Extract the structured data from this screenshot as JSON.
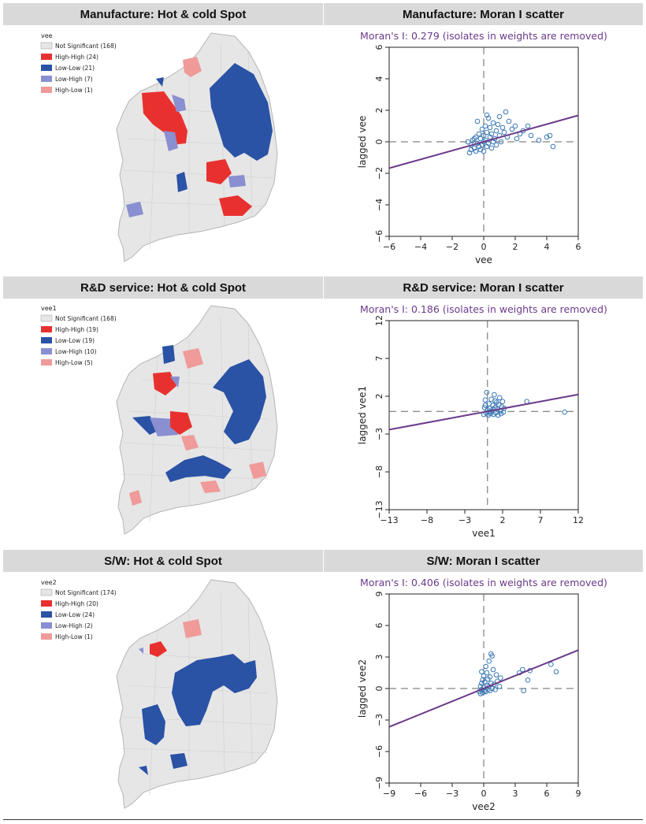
{
  "panels": [
    {
      "map_title": "Manufacture: Hot & cold Spot",
      "scatter_title": "Manufacture: Moran I scatter",
      "legend": {
        "variable": "vee",
        "items": [
          {
            "label": "Not Significant (168)",
            "color": "#e6e6e6"
          },
          {
            "label": "High-High (24)",
            "color": "#e8312f"
          },
          {
            "label": "Low-Low (21)",
            "color": "#2a52a5"
          },
          {
            "label": "Low-High (7)",
            "color": "#8a8fd1"
          },
          {
            "label": "High-Low (1)",
            "color": "#f09a9a"
          }
        ]
      },
      "moran_text": "Moran's I: 0.279 (isolates in weights are removed)"
    },
    {
      "map_title": "R&D service: Hot & cold Spot",
      "scatter_title": "R&D service: Moran I scatter",
      "legend": {
        "variable": "vee1",
        "items": [
          {
            "label": "Not Significant (168)",
            "color": "#e6e6e6"
          },
          {
            "label": "High-High (19)",
            "color": "#e8312f"
          },
          {
            "label": "Low-Low (19)",
            "color": "#2a52a5"
          },
          {
            "label": "Low-High (10)",
            "color": "#8a8fd1"
          },
          {
            "label": "High-Low (5)",
            "color": "#f09a9a"
          }
        ]
      },
      "moran_text": "Moran's I: 0.186 (isolates in weights are removed)"
    },
    {
      "map_title": "S/W: Hot & cold Spot",
      "scatter_title": "S/W: Moran I scatter",
      "legend": {
        "variable": "vee2",
        "items": [
          {
            "label": "Not Significant (174)",
            "color": "#e6e6e6"
          },
          {
            "label": "High-High (20)",
            "color": "#e8312f"
          },
          {
            "label": "Low-Low (24)",
            "color": "#2a52a5"
          },
          {
            "label": "Low-High (2)",
            "color": "#8a8fd1"
          },
          {
            "label": "High-Low (1)",
            "color": "#f09a9a"
          }
        ]
      },
      "moran_text": "Moran's I: 0.406 (isolates in weights are removed)"
    }
  ],
  "chart_data": [
    {
      "type": "scatter",
      "title": "Manufacture: Moran I scatter",
      "subtitle": "Moran's I: 0.279 (isolates in weights are removed)",
      "xlabel": "vee",
      "ylabel": "lagged vee",
      "xlim": [
        -6,
        6
      ],
      "ylim": [
        -6,
        6
      ],
      "xticks": [
        -6,
        -4,
        -2,
        0,
        2,
        4,
        6
      ],
      "yticks": [
        -6,
        -4,
        -2,
        0,
        2,
        4,
        6
      ],
      "slope": 0.279,
      "point_color": "#3a78b5",
      "line_color": "#6b3a8a",
      "points": [
        [
          -0.9,
          -0.7
        ],
        [
          -0.8,
          -0.5
        ],
        [
          -0.8,
          -0.2
        ],
        [
          -0.7,
          0.1
        ],
        [
          -0.6,
          -0.4
        ],
        [
          -0.5,
          -0.6
        ],
        [
          -0.5,
          0.3
        ],
        [
          -0.4,
          -0.1
        ],
        [
          -0.3,
          0.5
        ],
        [
          -0.3,
          -0.3
        ],
        [
          -0.2,
          -0.5
        ],
        [
          -0.2,
          0.2
        ],
        [
          -0.1,
          0.8
        ],
        [
          -0.1,
          -0.2
        ],
        [
          0.0,
          0.4
        ],
        [
          0.0,
          -0.6
        ],
        [
          0.1,
          0.1
        ],
        [
          0.1,
          1.0
        ],
        [
          0.2,
          -0.3
        ],
        [
          0.2,
          0.6
        ],
        [
          0.3,
          1.5
        ],
        [
          0.3,
          -0.1
        ],
        [
          0.4,
          0.3
        ],
        [
          0.4,
          0.9
        ],
        [
          0.5,
          -0.4
        ],
        [
          0.5,
          0.5
        ],
        [
          0.6,
          1.2
        ],
        [
          0.7,
          0.2
        ],
        [
          0.8,
          0.7
        ],
        [
          0.8,
          -0.2
        ],
        [
          0.9,
          1.1
        ],
        [
          1.0,
          0.4
        ],
        [
          1.1,
          0.0
        ],
        [
          1.2,
          0.9
        ],
        [
          1.3,
          0.6
        ],
        [
          1.4,
          1.9
        ],
        [
          1.5,
          0.3
        ],
        [
          1.6,
          1.3
        ],
        [
          1.8,
          0.8
        ],
        [
          2.0,
          1.0
        ],
        [
          2.1,
          0.2
        ],
        [
          2.3,
          0.5
        ],
        [
          2.5,
          0.7
        ],
        [
          2.8,
          1.0
        ],
        [
          3.0,
          0.4
        ],
        [
          3.5,
          0.1
        ],
        [
          4.0,
          0.3
        ],
        [
          4.2,
          0.4
        ],
        [
          4.4,
          -0.3
        ],
        [
          -1.0,
          0.0
        ],
        [
          -0.6,
          0.2
        ],
        [
          0.0,
          0.0
        ],
        [
          0.6,
          0.0
        ],
        [
          1.0,
          1.6
        ],
        [
          -0.4,
          1.3
        ],
        [
          0.2,
          1.7
        ]
      ]
    },
    {
      "type": "scatter",
      "title": "R&D service: Moran I scatter",
      "subtitle": "Moran's I: 0.186 (isolates in weights are removed)",
      "xlabel": "vee1",
      "ylabel": "lagged vee1",
      "xlim": [
        -13,
        12
      ],
      "ylim": [
        -13,
        12
      ],
      "xticks": [
        -13,
        -8,
        -3,
        2,
        7,
        12
      ],
      "yticks": [
        -13,
        -8,
        -3,
        2,
        7,
        12
      ],
      "slope": 0.186,
      "point_color": "#3a78b5",
      "line_color": "#6b3a8a",
      "points": [
        [
          -0.5,
          -0.4
        ],
        [
          -0.4,
          0.5
        ],
        [
          -0.3,
          1.5
        ],
        [
          -0.2,
          -0.2
        ],
        [
          -0.1,
          2.5
        ],
        [
          0.0,
          0.2
        ],
        [
          0.1,
          -0.5
        ],
        [
          0.2,
          1.0
        ],
        [
          0.3,
          0.4
        ],
        [
          0.4,
          -0.3
        ],
        [
          0.5,
          1.6
        ],
        [
          0.6,
          0.0
        ],
        [
          0.7,
          0.8
        ],
        [
          0.8,
          -0.4
        ],
        [
          0.9,
          2.2
        ],
        [
          1.0,
          0.5
        ],
        [
          1.1,
          -0.2
        ],
        [
          1.2,
          1.2
        ],
        [
          1.3,
          0.3
        ],
        [
          1.4,
          -0.5
        ],
        [
          1.5,
          0.9
        ],
        [
          1.6,
          1.8
        ],
        [
          1.7,
          0.1
        ],
        [
          1.8,
          -0.3
        ],
        [
          1.9,
          0.6
        ],
        [
          2.0,
          1.3
        ],
        [
          2.1,
          -0.1
        ],
        [
          2.2,
          0.4
        ],
        [
          -0.3,
          0.8
        ],
        [
          0.2,
          -0.1
        ],
        [
          0.7,
          0.3
        ],
        [
          1.0,
          1.4
        ],
        [
          5.2,
          1.3
        ],
        [
          10.2,
          -0.1
        ]
      ]
    },
    {
      "type": "scatter",
      "title": "S/W: Moran I scatter",
      "subtitle": "Moran's I: 0.406 (isolates in weights are removed)",
      "xlabel": "vee2",
      "ylabel": "lagged vee2",
      "xlim": [
        -9,
        9
      ],
      "ylim": [
        -9,
        9
      ],
      "xticks": [
        -9,
        -6,
        -3,
        0,
        3,
        6,
        9
      ],
      "yticks": [
        -9,
        -6,
        -3,
        0,
        3,
        6,
        9
      ],
      "slope": 0.406,
      "point_color": "#3a78b5",
      "line_color": "#6b3a8a",
      "points": [
        [
          -0.4,
          -0.3
        ],
        [
          -0.3,
          0.2
        ],
        [
          -0.3,
          -0.5
        ],
        [
          -0.2,
          0.5
        ],
        [
          -0.2,
          -0.1
        ],
        [
          -0.1,
          0.8
        ],
        [
          -0.1,
          -0.4
        ],
        [
          0.0,
          0.1
        ],
        [
          0.0,
          1.2
        ],
        [
          0.1,
          -0.2
        ],
        [
          0.1,
          0.6
        ],
        [
          0.2,
          2.1
        ],
        [
          0.2,
          -0.3
        ],
        [
          0.3,
          0.3
        ],
        [
          0.3,
          1.5
        ],
        [
          0.4,
          -0.1
        ],
        [
          0.4,
          0.9
        ],
        [
          0.5,
          0.2
        ],
        [
          0.5,
          2.6
        ],
        [
          0.6,
          -0.2
        ],
        [
          0.6,
          1.1
        ],
        [
          0.7,
          0.5
        ],
        [
          0.8,
          3.1
        ],
        [
          0.8,
          0.0
        ],
        [
          0.9,
          1.8
        ],
        [
          1.0,
          0.4
        ],
        [
          1.1,
          -0.1
        ],
        [
          1.2,
          1.3
        ],
        [
          1.3,
          0.7
        ],
        [
          1.5,
          0.2
        ],
        [
          1.6,
          1.0
        ],
        [
          3.4,
          1.5
        ],
        [
          3.7,
          1.8
        ],
        [
          3.8,
          -0.2
        ],
        [
          4.2,
          0.8
        ],
        [
          4.4,
          1.7
        ],
        [
          6.4,
          2.3
        ],
        [
          6.9,
          1.6
        ],
        [
          0.7,
          3.3
        ],
        [
          -0.2,
          1.6
        ]
      ]
    }
  ]
}
